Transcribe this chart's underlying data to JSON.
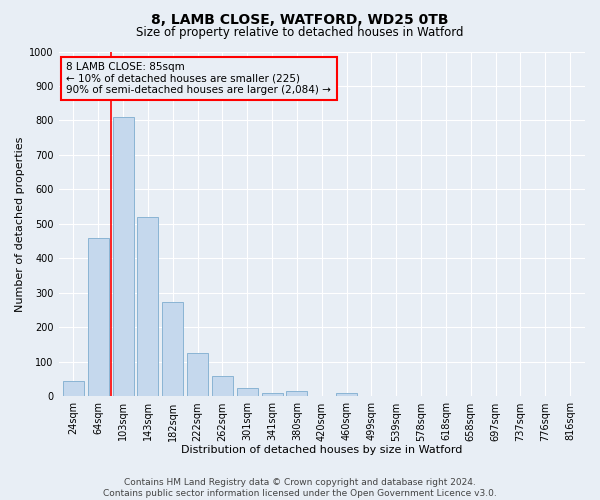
{
  "title": "8, LAMB CLOSE, WATFORD, WD25 0TB",
  "subtitle": "Size of property relative to detached houses in Watford",
  "xlabel": "Distribution of detached houses by size in Watford",
  "ylabel": "Number of detached properties",
  "bar_color": "#c5d8ed",
  "bar_edge_color": "#8ab4d4",
  "categories": [
    "24sqm",
    "64sqm",
    "103sqm",
    "143sqm",
    "182sqm",
    "222sqm",
    "262sqm",
    "301sqm",
    "341sqm",
    "380sqm",
    "420sqm",
    "460sqm",
    "499sqm",
    "539sqm",
    "578sqm",
    "618sqm",
    "658sqm",
    "697sqm",
    "737sqm",
    "776sqm",
    "816sqm"
  ],
  "values": [
    46,
    460,
    810,
    520,
    275,
    125,
    60,
    25,
    10,
    15,
    0,
    10,
    0,
    0,
    0,
    0,
    0,
    0,
    0,
    0,
    0
  ],
  "ylim": [
    0,
    1000
  ],
  "yticks": [
    0,
    100,
    200,
    300,
    400,
    500,
    600,
    700,
    800,
    900,
    1000
  ],
  "red_line_x": 1.5,
  "annotation_text": "8 LAMB CLOSE: 85sqm\n← 10% of detached houses are smaller (225)\n90% of semi-detached houses are larger (2,084) →",
  "footer_line1": "Contains HM Land Registry data © Crown copyright and database right 2024.",
  "footer_line2": "Contains public sector information licensed under the Open Government Licence v3.0.",
  "bg_color": "#e8eef5",
  "plot_bg_color": "#e8eef5",
  "grid_color": "#ffffff",
  "title_fontsize": 10,
  "subtitle_fontsize": 8.5,
  "axis_label_fontsize": 8,
  "tick_fontsize": 7,
  "footer_fontsize": 6.5,
  "annotation_fontsize": 7.5
}
